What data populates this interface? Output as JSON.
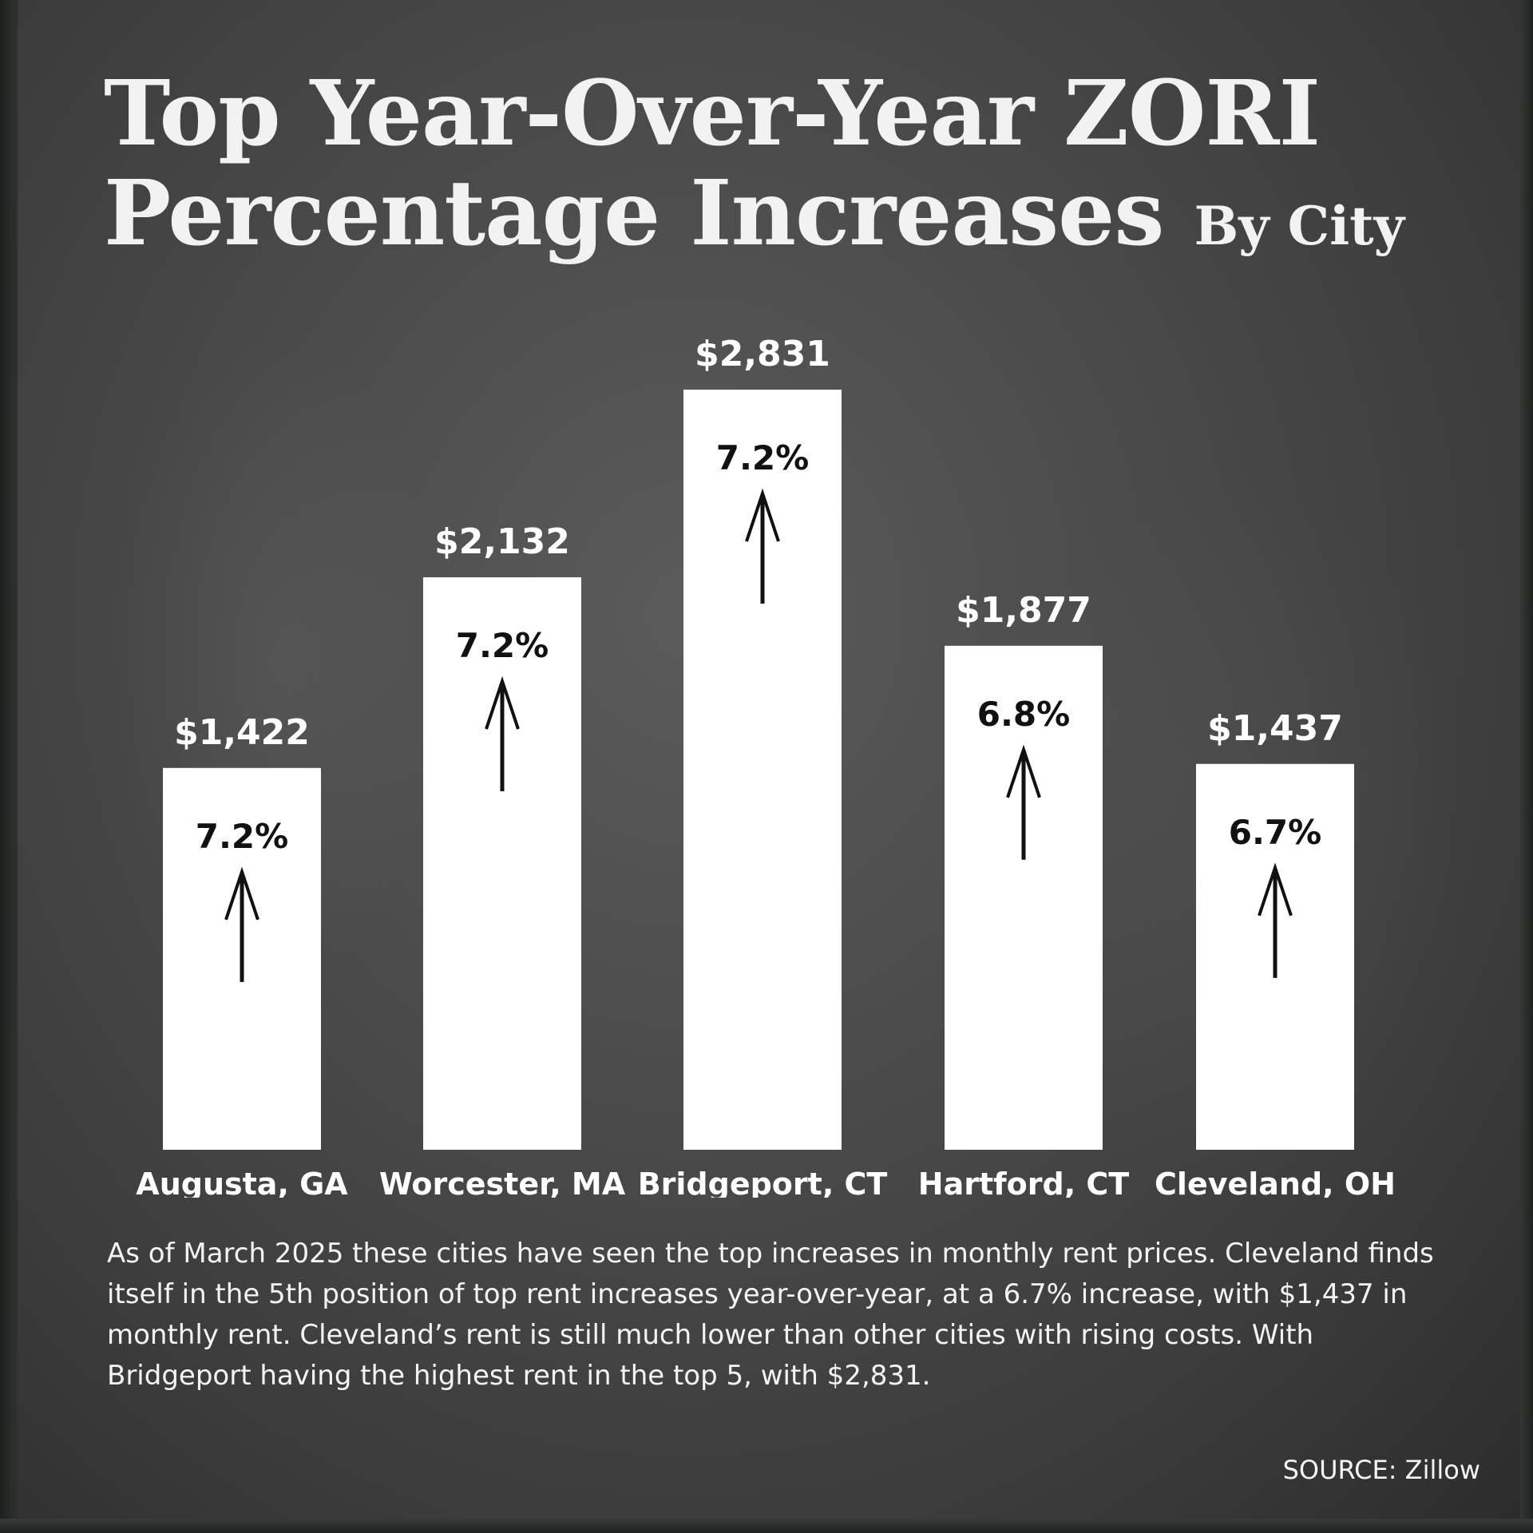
{
  "title": {
    "line1": "Top Year-Over-Year ZORI",
    "line2": "Percentage Increases",
    "subtitle": "By City"
  },
  "chart_data": {
    "type": "bar",
    "title": "Top Year-Over-Year ZORI Percentage Increases By City",
    "xlabel": "",
    "ylabel": "",
    "categories": [
      "Augusta, GA",
      "Worcester, MA",
      "Bridgeport, CT",
      "Hartford, CT",
      "Cleveland, OH"
    ],
    "values": [
      1422,
      2132,
      2831,
      1877,
      1437
    ],
    "value_labels": [
      "$1,422",
      "$2,132",
      "$2,831",
      "$1,877",
      "$1,437"
    ],
    "pct_change": [
      7.2,
      7.2,
      7.2,
      6.8,
      6.7
    ],
    "pct_labels": [
      "7.2%",
      "7.2%",
      "7.2%",
      "6.8%",
      "6.7%"
    ],
    "ylim": [
      0,
      2831
    ],
    "grid": false,
    "legend": "none",
    "bar_color": "#ffffff",
    "arrow_icon": "up-arrow-icon"
  },
  "description": "As of March 2025 these cities have seen the top increases in monthly rent prices. Cleveland finds itself in the 5th position of top rent increases year-over-year, at a 6.7% increase, with $1,437 in monthly rent. Cleveland’s rent is still much lower than other cities with rising costs. With Bridgeport having the highest rent in the top 5, with $2,831.",
  "source": "SOURCE: Zillow",
  "colors": {
    "background": "#4a4a4a",
    "text": "#f2f2f2",
    "bar": "#ffffff",
    "bar_text": "#111111"
  }
}
